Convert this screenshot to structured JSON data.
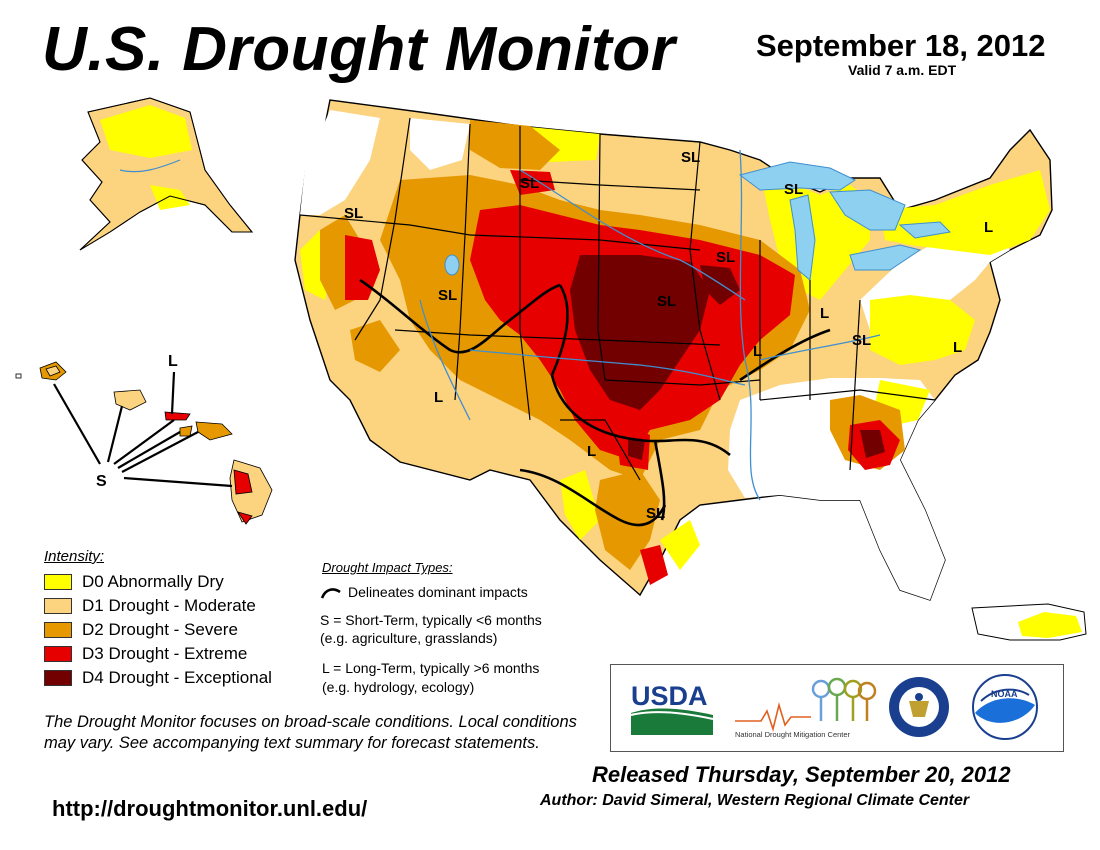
{
  "header": {
    "title": "U.S. Drought Monitor",
    "date": "September 18, 2012",
    "valid": "Valid 7 a.m. EDT"
  },
  "colors": {
    "d0": "#ffff00",
    "d1": "#fcd37f",
    "d2": "#e69800",
    "d3": "#e60000",
    "d4": "#730000",
    "water": "#8ed0ef",
    "borders": "#000000",
    "counties": "#9a9a9a",
    "rivers": "#3f8fd0"
  },
  "map_labels": {
    "sl": "SL",
    "l": "L",
    "s": "S"
  },
  "legend": {
    "heading": "Intensity:",
    "items": [
      {
        "label": "D0 Abnormally Dry",
        "color": "#ffff00"
      },
      {
        "label": "D1 Drought - Moderate",
        "color": "#fcd37f"
      },
      {
        "label": "D2 Drought - Severe",
        "color": "#e69800"
      },
      {
        "label": "D3 Drought - Extreme",
        "color": "#e60000"
      },
      {
        "label": "D4 Drought - Exceptional",
        "color": "#730000"
      }
    ]
  },
  "impacts": {
    "heading": "Drought Impact Types:",
    "line": "Delineates dominant impacts",
    "short_1": "S = Short-Term, typically <6 months",
    "short_2": "(e.g. agriculture, grasslands)",
    "long_1": "L = Long-Term, typically >6 months",
    "long_2": "(e.g. hydrology, ecology)"
  },
  "note": "The Drought Monitor focuses on broad-scale conditions. Local conditions may vary. See accompanying text summary for forecast statements.",
  "url": "http://droughtmonitor.unl.edu/",
  "released": "Released Thursday, September 20, 2012",
  "author": "Author: David Simeral, Western Regional Climate Center",
  "logos": {
    "usda": "USDA",
    "ndmc": "National Drought Mitigation Center",
    "noaa": "NOAA",
    "commerce_icon": "department-of-commerce-seal"
  }
}
